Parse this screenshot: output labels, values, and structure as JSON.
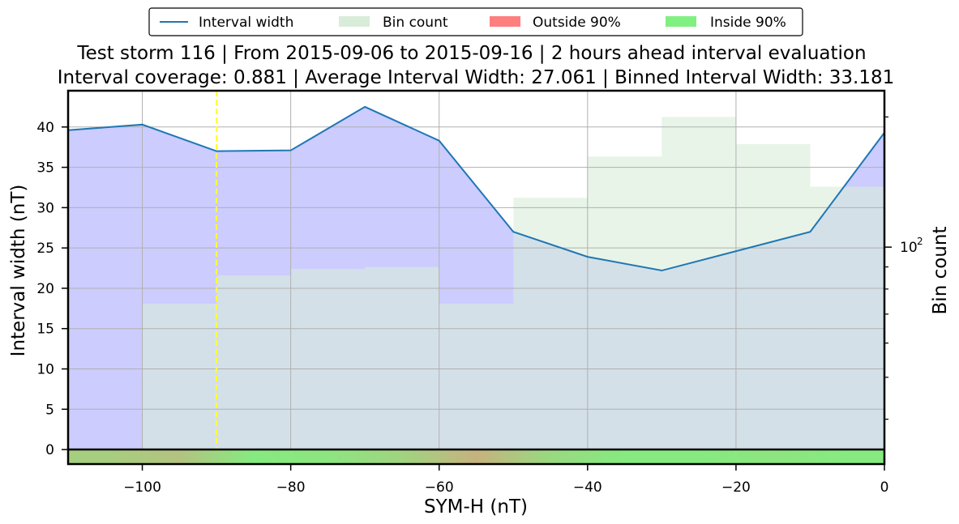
{
  "chart_data": {
    "type": "line",
    "title": "Test storm 116 | From 2015-09-06 to 2015-09-16 | 2 hours ahead interval evaluation",
    "subtitle": "Interval coverage: 0.881 | Average Interval Width: 27.061 | Binned Interval Width: 33.181",
    "xlabel": "SYM-H (nT)",
    "ylabel": "Interval width (nT)",
    "y2label": "Bin count",
    "xlim": [
      -110,
      0
    ],
    "ylim": [
      -1.8,
      44.5
    ],
    "y2scale": "log",
    "y2lim": [
      31.5,
      230
    ],
    "grid": true,
    "legend_position": "top-center",
    "x_ticks": [
      -100,
      -80,
      -60,
      -40,
      -20,
      0
    ],
    "x_tick_labels": [
      "−100",
      "−80",
      "−60",
      "−40",
      "−20",
      "0"
    ],
    "y_ticks": [
      0,
      5,
      10,
      15,
      20,
      25,
      30,
      35,
      40
    ],
    "y2_tick_label_main": "10",
    "y2_tick_label_exp": "2",
    "y2_major_tick": 100,
    "y2_minor_ticks": [
      40,
      50,
      60,
      70,
      80,
      90,
      200
    ],
    "interval_width": {
      "name": "Interval width",
      "color": "#1f77b4",
      "x": [
        -110,
        -100,
        -90,
        -80,
        -70,
        -60,
        -50,
        -40,
        -30,
        -20,
        -10,
        0
      ],
      "y": [
        39.6,
        40.3,
        37.0,
        37.1,
        42.5,
        38.3,
        27.0,
        23.9,
        22.2,
        24.6,
        27.0,
        39.3
      ]
    },
    "bin_count": {
      "name": "Bin count",
      "color": "#d9ecd9",
      "edges": [
        -110,
        -100,
        -90,
        -80,
        -70,
        -60,
        -50,
        -40,
        -30,
        -20,
        -10,
        0
      ],
      "counts": [
        34,
        74,
        86,
        89,
        90,
        74,
        130,
        162,
        200,
        173,
        138
      ]
    },
    "coverage_bar": {
      "outside_label": "Outside 90%",
      "inside_label": "Inside 90%",
      "outside_color": "#ff7f7f",
      "inside_color": "#80f080",
      "inside_fraction": [
        0.7,
        0.6,
        0.95,
        0.9,
        0.75,
        0.45,
        0.8,
        0.95,
        0.95,
        0.9,
        0.95
      ]
    },
    "fill_color": "#ccccff",
    "threshold_line": {
      "x": -90,
      "color": "#ffff33"
    }
  }
}
